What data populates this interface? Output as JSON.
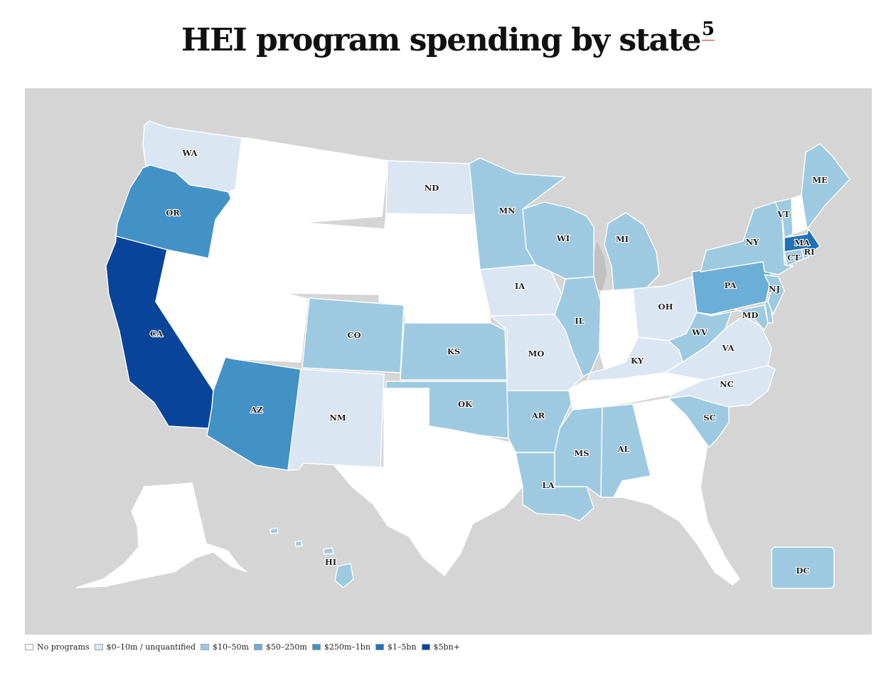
{
  "title": "HEI program spending by state",
  "footnote_marker": "5",
  "colors": {
    "background": "#d4d5d4",
    "none": "#ffffff",
    "tier1": "#dae6f2",
    "tier2": "#9ecae1",
    "tier3": "#6baed6",
    "tier4": "#4292c6",
    "tier5": "#2171b5",
    "tier6": "#08459a"
  },
  "legend": [
    {
      "label": "No programs",
      "color": "#ffffff"
    },
    {
      "label": "$0–10m / unquantified",
      "color": "#dae6f2"
    },
    {
      "label": "$10–50m",
      "color": "#9ecae1"
    },
    {
      "label": "$50–250m",
      "color": "#6baed6"
    },
    {
      "label": "$250m–1bn",
      "color": "#4292c6"
    },
    {
      "label": "$1–5bn",
      "color": "#2171b5"
    },
    {
      "label": "$5bn+",
      "color": "#08459a"
    }
  ],
  "states": {
    "WA": "$0–10m / unquantified",
    "OR": "$250m–1bn",
    "CA": "$5bn+",
    "NV": "No programs",
    "ID": "No programs",
    "MT": "No programs",
    "WY": "No programs",
    "UT": "No programs",
    "AZ": "$250m–1bn",
    "CO": "$10–50m",
    "NM": "$0–10m / unquantified",
    "ND": "$0–10m / unquantified",
    "SD": "No programs",
    "NE": "No programs",
    "KS": "$10–50m",
    "OK": "$10–50m",
    "TX": "No programs",
    "MN": "$10–50m",
    "IA": "$0–10m / unquantified",
    "MO": "$0–10m / unquantified",
    "AR": "$10–50m",
    "LA": "$10–50m",
    "WI": "$10–50m",
    "IL": "$10–50m",
    "MI": "$10–50m",
    "IN": "No programs",
    "OH": "$0–10m / unquantified",
    "KY": "$0–10m / unquantified",
    "TN": "No programs",
    "MS": "$10–50m",
    "AL": "$10–50m",
    "GA": "No programs",
    "FL": "No programs",
    "SC": "$10–50m",
    "NC": "$0–10m / unquantified",
    "VA": "$0–10m / unquantified",
    "WV": "$10–50m",
    "MD": "$10–50m",
    "DE": "$10–50m",
    "PA": "$50–250m",
    "NJ": "$10–50m",
    "NY": "$10–50m",
    "CT": "$10–50m",
    "RI": "$10–50m",
    "MA": "$1–5bn",
    "VT": "$10–50m",
    "NH": "No programs",
    "ME": "$10–50m",
    "AK": "No programs",
    "HI": "$10–50m",
    "DC": "$10–50m"
  }
}
